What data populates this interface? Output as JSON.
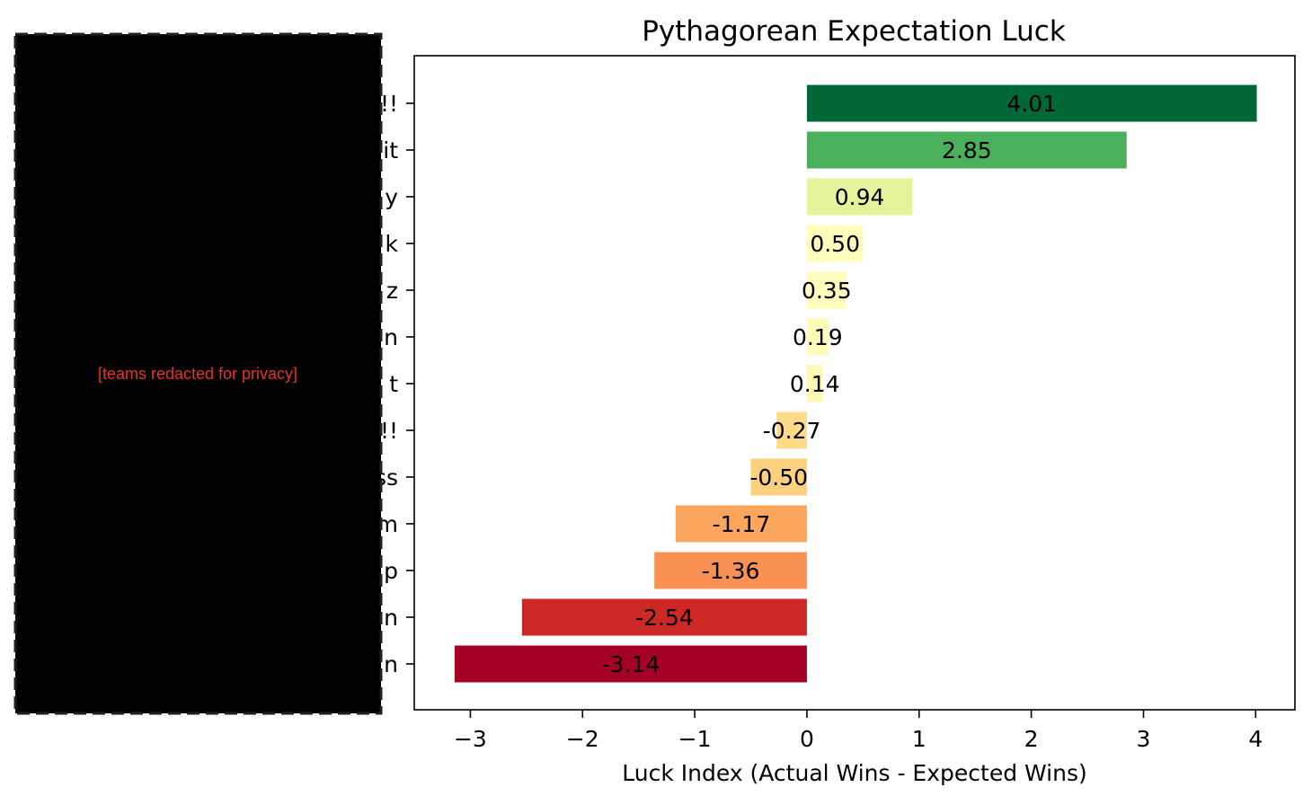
{
  "chart_data": {
    "type": "bar",
    "orientation": "horizontal",
    "title": "Pythagorean Expectation Luck",
    "xlabel": "Luck Index (Actual Wins - Expected Wins)",
    "ylabel": "",
    "xlim": [
      -3.5,
      4.35
    ],
    "xticks": [
      -3,
      -2,
      -1,
      0,
      1,
      2,
      3,
      4
    ],
    "xtick_labels": [
      "−3",
      "−2",
      "−1",
      "0",
      "1",
      "2",
      "3",
      "4"
    ],
    "grid": false,
    "legend": "none",
    "categories": [
      "!!",
      "it",
      "y",
      "k",
      "z",
      "n",
      "t",
      "!!",
      "ss",
      "m",
      "p",
      "n",
      "n"
    ],
    "values": [
      4.01,
      2.85,
      0.94,
      0.5,
      0.35,
      0.19,
      0.14,
      -0.27,
      -0.5,
      -1.17,
      -1.36,
      -2.54,
      -3.14
    ],
    "value_labels": [
      "4.01",
      "2.85",
      "0.94",
      "0.50",
      "0.35",
      "0.19",
      "0.14",
      "-0.27",
      "-0.50",
      "-1.17",
      "-1.36",
      "-2.54",
      "-3.14"
    ],
    "bar_colors": [
      "#006837",
      "#4bb05c",
      "#e5f49b",
      "#fefebd",
      "#fffdbc",
      "#fffbb8",
      "#fff9b4",
      "#fedb88",
      "#fdd07e",
      "#fca55d",
      "#f99153",
      "#cd2826",
      "#a50026"
    ],
    "colormap": "RdYlGn"
  },
  "redaction": {
    "text": "[teams redacted for privacy]",
    "fill": "#000000",
    "text_color": "#e8312e"
  }
}
